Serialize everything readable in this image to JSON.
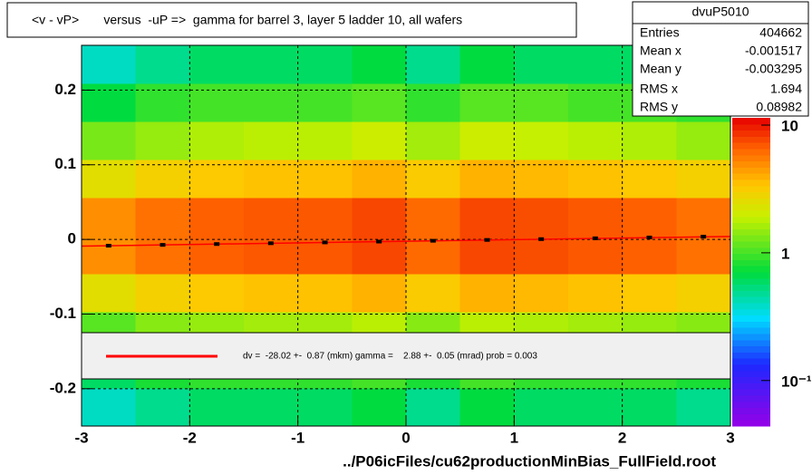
{
  "chart_data": {
    "type": "heatmap",
    "title": "<v - vP>       versus  -uP =>  gamma for barrel 3, layer 5 ladder 10, all wafers",
    "x_label": "../P06icFiles/cu62productionMinBias_FullField.root",
    "xlim": [
      -3,
      3
    ],
    "ylim": [
      -0.25,
      0.26
    ],
    "xticks": [
      -3,
      -2,
      -1,
      0,
      1,
      2,
      3
    ],
    "yticks": [
      -0.2,
      -0.1,
      0,
      0.1,
      0.2
    ],
    "grid": true,
    "log_z": true,
    "zlim": [
      0.044,
      11.4
    ],
    "zticks": [
      {
        "value": 10,
        "label": "10"
      },
      {
        "value": 1,
        "label": "1"
      },
      {
        "value": 0.1,
        "label": "10⁻¹"
      }
    ],
    "xbins": [
      -3,
      -2.5,
      -2,
      -1.5,
      -1,
      -0.5,
      0,
      0.5,
      1,
      1.5,
      2,
      2.5,
      3
    ],
    "ybins": [
      -0.25,
      -0.199,
      -0.148,
      -0.097,
      -0.046,
      0.005,
      0.056,
      0.107,
      0.158,
      0.209,
      0.26
    ],
    "z": [
      [
        0.4,
        0.5,
        0.6,
        0.6,
        0.6,
        0.7,
        0.5,
        0.7,
        0.6,
        0.6,
        0.6,
        0.5
      ],
      [
        0.6,
        0.8,
        0.9,
        0.9,
        0.9,
        1.0,
        0.8,
        1.0,
        0.9,
        0.9,
        0.9,
        0.8
      ],
      [
        1.1,
        1.4,
        1.5,
        1.6,
        1.6,
        1.8,
        1.4,
        1.8,
        1.7,
        1.6,
        1.5,
        1.4
      ],
      [
        2.5,
        3.0,
        3.3,
        3.5,
        3.5,
        3.9,
        3.2,
        3.9,
        3.7,
        3.5,
        3.3,
        3.0
      ],
      [
        4.9,
        6.0,
        6.7,
        7.0,
        7.0,
        7.7,
        6.3,
        7.7,
        7.4,
        7.0,
        6.7,
        6.0
      ],
      [
        4.9,
        6.0,
        6.7,
        7.0,
        7.0,
        7.7,
        6.3,
        7.7,
        7.4,
        7.0,
        6.7,
        6.0
      ],
      [
        2.5,
        3.0,
        3.3,
        3.5,
        3.5,
        3.9,
        3.2,
        3.9,
        3.7,
        3.5,
        3.3,
        3.0
      ],
      [
        1.3,
        1.5,
        1.7,
        1.8,
        1.8,
        2.0,
        1.6,
        2.0,
        1.9,
        1.8,
        1.7,
        1.5
      ],
      [
        0.7,
        0.9,
        1.0,
        1.0,
        1.0,
        1.1,
        0.9,
        1.1,
        1.1,
        1.0,
        1.0,
        0.9
      ],
      [
        0.4,
        0.5,
        0.6,
        0.6,
        0.6,
        0.7,
        0.5,
        0.7,
        0.6,
        0.6,
        0.6,
        0.5
      ]
    ],
    "profile": {
      "color": "#000000",
      "x": [
        -2.75,
        -2.25,
        -1.75,
        -1.25,
        -0.75,
        -0.25,
        0.25,
        0.75,
        1.25,
        1.75,
        2.25,
        2.75
      ],
      "values": [
        -0.0084,
        -0.0073,
        -0.0062,
        -0.0051,
        -0.004,
        -0.0029,
        -0.0018,
        -0.0007,
        0.0004,
        0.0015,
        0.0026,
        0.0037
      ]
    },
    "fit_line": {
      "color": "#ff0000",
      "x": [
        -3,
        3
      ],
      "values": [
        -0.009,
        0.004
      ]
    },
    "fit_legend": "dv =  -28.02 +-  0.87 (mkm) gamma =    2.88 +-  0.05 (mrad) prob = 0.003",
    "stats_box": {
      "title": "dvuP5010",
      "rows": [
        [
          "Entries",
          404662
        ],
        [
          "Mean x",
          -0.001517
        ],
        [
          "Mean y",
          -0.003295
        ],
        [
          "RMS x",
          1.694
        ],
        [
          "RMS y",
          0.08982
        ]
      ]
    }
  }
}
